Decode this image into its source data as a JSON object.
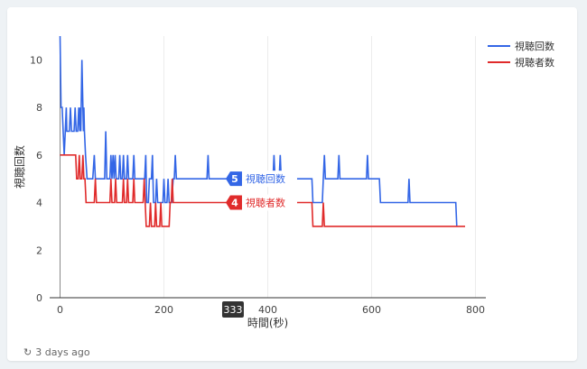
{
  "chart_data": {
    "type": "line",
    "xlabel": "時間(秒)",
    "ylabel": "視聴回数",
    "xlim": [
      -20,
      820
    ],
    "ylim": [
      0,
      11
    ],
    "xticks": [
      0,
      200,
      400,
      600,
      800
    ],
    "yticks": [
      0,
      2,
      4,
      6,
      8,
      10
    ],
    "grid": "vertical",
    "legend_position": "right",
    "series": [
      {
        "name": "視聴回数",
        "color": "#3366e6",
        "points": [
          [
            0,
            11
          ],
          [
            2,
            8
          ],
          [
            4,
            8
          ],
          [
            8,
            6
          ],
          [
            10,
            7
          ],
          [
            12,
            8
          ],
          [
            13,
            7
          ],
          [
            18,
            7
          ],
          [
            20,
            8
          ],
          [
            22,
            7
          ],
          [
            27,
            7
          ],
          [
            29,
            8
          ],
          [
            31,
            7
          ],
          [
            34,
            7
          ],
          [
            36,
            8
          ],
          [
            38,
            7
          ],
          [
            39,
            8
          ],
          [
            40,
            7
          ],
          [
            42,
            10
          ],
          [
            44,
            8
          ],
          [
            45,
            7
          ],
          [
            46,
            8
          ],
          [
            47,
            7
          ],
          [
            49,
            6
          ],
          [
            52,
            5
          ],
          [
            63,
            5
          ],
          [
            66,
            6
          ],
          [
            68,
            5
          ],
          [
            86,
            5
          ],
          [
            88,
            7
          ],
          [
            90,
            5
          ],
          [
            96,
            5
          ],
          [
            98,
            6
          ],
          [
            100,
            5
          ],
          [
            102,
            6
          ],
          [
            104,
            5
          ],
          [
            106,
            6
          ],
          [
            108,
            5
          ],
          [
            113,
            5
          ],
          [
            115,
            6
          ],
          [
            117,
            5
          ],
          [
            120,
            5
          ],
          [
            122,
            6
          ],
          [
            124,
            5
          ],
          [
            128,
            5
          ],
          [
            130,
            6
          ],
          [
            132,
            5
          ],
          [
            140,
            5
          ],
          [
            142,
            6
          ],
          [
            144,
            5
          ],
          [
            163,
            5
          ],
          [
            165,
            6
          ],
          [
            167,
            4
          ],
          [
            170,
            4
          ],
          [
            172,
            5
          ],
          [
            176,
            5
          ],
          [
            178,
            6
          ],
          [
            180,
            4
          ],
          [
            184,
            4
          ],
          [
            186,
            5
          ],
          [
            188,
            4
          ],
          [
            198,
            4
          ],
          [
            200,
            5
          ],
          [
            202,
            4
          ],
          [
            206,
            4
          ],
          [
            208,
            5
          ],
          [
            210,
            4
          ],
          [
            215,
            4
          ],
          [
            218,
            5
          ],
          [
            220,
            5
          ],
          [
            222,
            6
          ],
          [
            224,
            5
          ],
          [
            283,
            5
          ],
          [
            285,
            6
          ],
          [
            287,
            5
          ],
          [
            410,
            5
          ],
          [
            412,
            6
          ],
          [
            414,
            5
          ],
          [
            422,
            5
          ],
          [
            424,
            6
          ],
          [
            426,
            5
          ],
          [
            485,
            5
          ],
          [
            487,
            4
          ],
          [
            505,
            4
          ],
          [
            507,
            5
          ],
          [
            509,
            6
          ],
          [
            511,
            5
          ],
          [
            535,
            5
          ],
          [
            537,
            6
          ],
          [
            539,
            5
          ],
          [
            590,
            5
          ],
          [
            592,
            6
          ],
          [
            594,
            5
          ],
          [
            615,
            5
          ],
          [
            617,
            4
          ],
          [
            670,
            4
          ],
          [
            672,
            5
          ],
          [
            674,
            4
          ],
          [
            762,
            4
          ],
          [
            764,
            3
          ]
        ]
      },
      {
        "name": "視聴者数",
        "color": "#e02b2b",
        "points": [
          [
            0,
            6
          ],
          [
            30,
            6
          ],
          [
            32,
            5
          ],
          [
            35,
            5
          ],
          [
            37,
            6
          ],
          [
            39,
            5
          ],
          [
            42,
            5
          ],
          [
            44,
            6
          ],
          [
            46,
            5
          ],
          [
            48,
            5
          ],
          [
            50,
            4
          ],
          [
            66,
            4
          ],
          [
            68,
            5
          ],
          [
            70,
            4
          ],
          [
            96,
            4
          ],
          [
            98,
            5
          ],
          [
            100,
            4
          ],
          [
            105,
            4
          ],
          [
            107,
            5
          ],
          [
            109,
            4
          ],
          [
            120,
            4
          ],
          [
            122,
            5
          ],
          [
            124,
            4
          ],
          [
            128,
            4
          ],
          [
            130,
            5
          ],
          [
            132,
            4
          ],
          [
            140,
            4
          ],
          [
            142,
            5
          ],
          [
            144,
            4
          ],
          [
            160,
            4
          ],
          [
            162,
            5
          ],
          [
            164,
            4
          ],
          [
            166,
            3
          ],
          [
            172,
            3
          ],
          [
            174,
            4
          ],
          [
            176,
            3
          ],
          [
            182,
            3
          ],
          [
            184,
            4
          ],
          [
            186,
            3
          ],
          [
            192,
            3
          ],
          [
            194,
            4
          ],
          [
            196,
            3
          ],
          [
            210,
            3
          ],
          [
            212,
            4
          ],
          [
            214,
            4
          ],
          [
            216,
            5
          ],
          [
            218,
            4
          ],
          [
            485,
            4
          ],
          [
            487,
            3
          ],
          [
            505,
            3
          ],
          [
            507,
            4
          ],
          [
            509,
            3
          ],
          [
            780,
            3
          ]
        ]
      }
    ],
    "cursor": {
      "x": 333,
      "x_label": "333",
      "tooltips": [
        {
          "series": "視聴回数",
          "value": "5",
          "label": "視聴回数"
        },
        {
          "series": "視聴者数",
          "value": "4",
          "label": "視聴者数"
        }
      ]
    }
  },
  "footer": {
    "refresh_icon": "refresh-icon",
    "updated_text": "3 days ago"
  }
}
